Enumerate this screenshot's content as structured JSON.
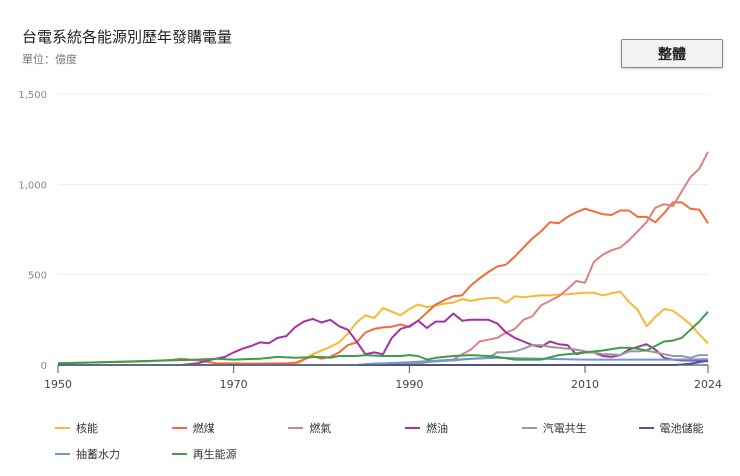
{
  "header": {
    "title": "台電系統各能源別歷年發購電量",
    "subtitle": "單位：億度",
    "view_button": "整體"
  },
  "chart_data": {
    "type": "line",
    "title": "台電系統各能源別歷年發購電量",
    "ylabel": "單位：億度",
    "xlim": [
      1950,
      2024
    ],
    "ylim": [
      0,
      1500
    ],
    "x_ticks": [
      "1950",
      "1970",
      "1990",
      "2010",
      "2024"
    ],
    "y_ticks": [
      "0",
      "500",
      "1,000",
      "1,500"
    ],
    "grid": true,
    "legend_position": "bottom",
    "series": [
      {
        "name": "核能",
        "color": "#f5b935",
        "points": [
          [
            1950,
            0
          ],
          [
            1977,
            0
          ],
          [
            1978,
            30
          ],
          [
            1979,
            60
          ],
          [
            1980,
            80
          ],
          [
            1981,
            100
          ],
          [
            1982,
            125
          ],
          [
            1983,
            175
          ],
          [
            1984,
            235
          ],
          [
            1985,
            275
          ],
          [
            1986,
            260
          ],
          [
            1987,
            315
          ],
          [
            1988,
            295
          ],
          [
            1989,
            275
          ],
          [
            1990,
            310
          ],
          [
            1991,
            335
          ],
          [
            1992,
            320
          ],
          [
            1993,
            330
          ],
          [
            1994,
            340
          ],
          [
            1995,
            345
          ],
          [
            1996,
            365
          ],
          [
            1997,
            355
          ],
          [
            1998,
            365
          ],
          [
            1999,
            370
          ],
          [
            2000,
            372
          ],
          [
            2001,
            345
          ],
          [
            2002,
            380
          ],
          [
            2003,
            375
          ],
          [
            2004,
            380
          ],
          [
            2005,
            385
          ],
          [
            2006,
            385
          ],
          [
            2007,
            390
          ],
          [
            2008,
            392
          ],
          [
            2009,
            396
          ],
          [
            2010,
            400
          ],
          [
            2011,
            400
          ],
          [
            2012,
            385
          ],
          [
            2013,
            397
          ],
          [
            2014,
            407
          ],
          [
            2015,
            350
          ],
          [
            2016,
            305
          ],
          [
            2017,
            215
          ],
          [
            2018,
            265
          ],
          [
            2019,
            310
          ],
          [
            2020,
            300
          ],
          [
            2021,
            265
          ],
          [
            2022,
            225
          ],
          [
            2023,
            170
          ],
          [
            2024,
            120
          ]
        ]
      },
      {
        "name": "燃煤",
        "color": "#f26b38",
        "points": [
          [
            1950,
            10
          ],
          [
            1955,
            15
          ],
          [
            1960,
            20
          ],
          [
            1963,
            28
          ],
          [
            1964,
            35
          ],
          [
            1966,
            25
          ],
          [
            1968,
            10
          ],
          [
            1972,
            8
          ],
          [
            1976,
            10
          ],
          [
            1977,
            12
          ],
          [
            1978,
            30
          ],
          [
            1979,
            50
          ],
          [
            1980,
            35
          ],
          [
            1981,
            45
          ],
          [
            1982,
            70
          ],
          [
            1983,
            110
          ],
          [
            1984,
            125
          ],
          [
            1985,
            180
          ],
          [
            1986,
            200
          ],
          [
            1987,
            208
          ],
          [
            1988,
            212
          ],
          [
            1989,
            225
          ],
          [
            1990,
            210
          ],
          [
            1991,
            245
          ],
          [
            1992,
            290
          ],
          [
            1993,
            335
          ],
          [
            1994,
            360
          ],
          [
            1995,
            380
          ],
          [
            1996,
            385
          ],
          [
            1997,
            440
          ],
          [
            1998,
            480
          ],
          [
            1999,
            515
          ],
          [
            2000,
            545
          ],
          [
            2001,
            555
          ],
          [
            2002,
            600
          ],
          [
            2003,
            650
          ],
          [
            2004,
            700
          ],
          [
            2005,
            740
          ],
          [
            2006,
            790
          ],
          [
            2007,
            785
          ],
          [
            2008,
            820
          ],
          [
            2009,
            845
          ],
          [
            2010,
            865
          ],
          [
            2011,
            850
          ],
          [
            2012,
            835
          ],
          [
            2013,
            830
          ],
          [
            2014,
            855
          ],
          [
            2015,
            855
          ],
          [
            2016,
            820
          ],
          [
            2017,
            820
          ],
          [
            2018,
            790
          ],
          [
            2019,
            840
          ],
          [
            2020,
            900
          ],
          [
            2021,
            900
          ],
          [
            2022,
            865
          ],
          [
            2023,
            860
          ],
          [
            2024,
            785
          ]
        ]
      },
      {
        "name": "燃氣",
        "color": "#d98383",
        "points": [
          [
            1990,
            0
          ],
          [
            1992,
            15
          ],
          [
            1994,
            25
          ],
          [
            1995,
            30
          ],
          [
            1996,
            60
          ],
          [
            1997,
            85
          ],
          [
            1998,
            130
          ],
          [
            1999,
            140
          ],
          [
            2000,
            150
          ],
          [
            2001,
            180
          ],
          [
            2002,
            200
          ],
          [
            2003,
            250
          ],
          [
            2004,
            270
          ],
          [
            2005,
            330
          ],
          [
            2006,
            355
          ],
          [
            2007,
            380
          ],
          [
            2008,
            420
          ],
          [
            2009,
            465
          ],
          [
            2010,
            455
          ],
          [
            2011,
            570
          ],
          [
            2012,
            610
          ],
          [
            2013,
            635
          ],
          [
            2014,
            650
          ],
          [
            2015,
            690
          ],
          [
            2016,
            740
          ],
          [
            2017,
            790
          ],
          [
            2018,
            870
          ],
          [
            2019,
            890
          ],
          [
            2020,
            880
          ],
          [
            2021,
            960
          ],
          [
            2022,
            1040
          ],
          [
            2023,
            1085
          ],
          [
            2024,
            1180
          ]
        ]
      },
      {
        "name": "燃油",
        "color": "#a630a8",
        "points": [
          [
            1964,
            0
          ],
          [
            1966,
            10
          ],
          [
            1967,
            25
          ],
          [
            1968,
            35
          ],
          [
            1969,
            45
          ],
          [
            1970,
            70
          ],
          [
            1971,
            90
          ],
          [
            1972,
            105
          ],
          [
            1973,
            125
          ],
          [
            1974,
            120
          ],
          [
            1975,
            150
          ],
          [
            1976,
            160
          ],
          [
            1977,
            210
          ],
          [
            1978,
            240
          ],
          [
            1979,
            255
          ],
          [
            1980,
            235
          ],
          [
            1981,
            250
          ],
          [
            1982,
            215
          ],
          [
            1983,
            195
          ],
          [
            1984,
            130
          ],
          [
            1985,
            60
          ],
          [
            1986,
            70
          ],
          [
            1987,
            60
          ],
          [
            1988,
            150
          ],
          [
            1989,
            200
          ],
          [
            1990,
            215
          ],
          [
            1991,
            245
          ],
          [
            1992,
            205
          ],
          [
            1993,
            240
          ],
          [
            1994,
            240
          ],
          [
            1995,
            285
          ],
          [
            1996,
            245
          ],
          [
            1997,
            250
          ],
          [
            1998,
            250
          ],
          [
            1999,
            250
          ],
          [
            2000,
            230
          ],
          [
            2001,
            180
          ],
          [
            2002,
            150
          ],
          [
            2003,
            130
          ],
          [
            2004,
            110
          ],
          [
            2005,
            100
          ],
          [
            2006,
            130
          ],
          [
            2007,
            115
          ],
          [
            2008,
            110
          ],
          [
            2009,
            60
          ],
          [
            2010,
            70
          ],
          [
            2011,
            70
          ],
          [
            2012,
            50
          ],
          [
            2013,
            45
          ],
          [
            2014,
            55
          ],
          [
            2015,
            85
          ],
          [
            2016,
            100
          ],
          [
            2017,
            115
          ],
          [
            2018,
            85
          ],
          [
            2019,
            40
          ],
          [
            2020,
            30
          ],
          [
            2021,
            25
          ],
          [
            2022,
            25
          ],
          [
            2023,
            25
          ],
          [
            2024,
            20
          ]
        ]
      },
      {
        "name": "汽電共生",
        "color": "#999999",
        "points": [
          [
            1985,
            0
          ],
          [
            1986,
            8
          ],
          [
            1990,
            10
          ],
          [
            1993,
            20
          ],
          [
            1995,
            25
          ],
          [
            1997,
            35
          ],
          [
            1999,
            40
          ],
          [
            2000,
            70
          ],
          [
            2001,
            70
          ],
          [
            2002,
            75
          ],
          [
            2003,
            90
          ],
          [
            2004,
            110
          ],
          [
            2005,
            110
          ],
          [
            2006,
            100
          ],
          [
            2007,
            95
          ],
          [
            2008,
            90
          ],
          [
            2009,
            85
          ],
          [
            2010,
            75
          ],
          [
            2011,
            70
          ],
          [
            2012,
            60
          ],
          [
            2013,
            60
          ],
          [
            2014,
            55
          ],
          [
            2015,
            75
          ],
          [
            2016,
            75
          ],
          [
            2017,
            80
          ],
          [
            2018,
            70
          ],
          [
            2019,
            60
          ],
          [
            2020,
            50
          ],
          [
            2021,
            50
          ],
          [
            2022,
            40
          ],
          [
            2023,
            55
          ],
          [
            2024,
            55
          ]
        ]
      },
      {
        "name": "電池儲能",
        "color": "#4c5a9c",
        "points": [
          [
            1950,
            0
          ],
          [
            2020,
            0
          ],
          [
            2021,
            3
          ],
          [
            2022,
            8
          ],
          [
            2023,
            15
          ],
          [
            2024,
            25
          ]
        ]
      },
      {
        "name": "抽蓄水力",
        "color": "#6f95e0",
        "points": [
          [
            1950,
            0
          ],
          [
            1984,
            0
          ],
          [
            1985,
            5
          ],
          [
            1990,
            15
          ],
          [
            1995,
            30
          ],
          [
            2000,
            40
          ],
          [
            2005,
            35
          ],
          [
            2010,
            30
          ],
          [
            2015,
            30
          ],
          [
            2020,
            30
          ],
          [
            2024,
            32
          ]
        ]
      },
      {
        "name": "再生能源",
        "color": "#3f9d45",
        "points": [
          [
            1950,
            10
          ],
          [
            1955,
            15
          ],
          [
            1960,
            22
          ],
          [
            1965,
            28
          ],
          [
            1968,
            35
          ],
          [
            1970,
            30
          ],
          [
            1973,
            35
          ],
          [
            1975,
            45
          ],
          [
            1977,
            40
          ],
          [
            1980,
            45
          ],
          [
            1981,
            40
          ],
          [
            1982,
            50
          ],
          [
            1984,
            50
          ],
          [
            1985,
            55
          ],
          [
            1987,
            50
          ],
          [
            1989,
            50
          ],
          [
            1990,
            55
          ],
          [
            1991,
            50
          ],
          [
            1992,
            30
          ],
          [
            1993,
            40
          ],
          [
            1995,
            50
          ],
          [
            1997,
            55
          ],
          [
            1999,
            50
          ],
          [
            2000,
            45
          ],
          [
            2002,
            30
          ],
          [
            2005,
            30
          ],
          [
            2007,
            55
          ],
          [
            2008,
            60
          ],
          [
            2010,
            70
          ],
          [
            2012,
            80
          ],
          [
            2014,
            95
          ],
          [
            2015,
            95
          ],
          [
            2016,
            90
          ],
          [
            2017,
            80
          ],
          [
            2018,
            105
          ],
          [
            2019,
            130
          ],
          [
            2020,
            135
          ],
          [
            2021,
            150
          ],
          [
            2022,
            195
          ],
          [
            2023,
            240
          ],
          [
            2024,
            295
          ]
        ]
      }
    ]
  }
}
